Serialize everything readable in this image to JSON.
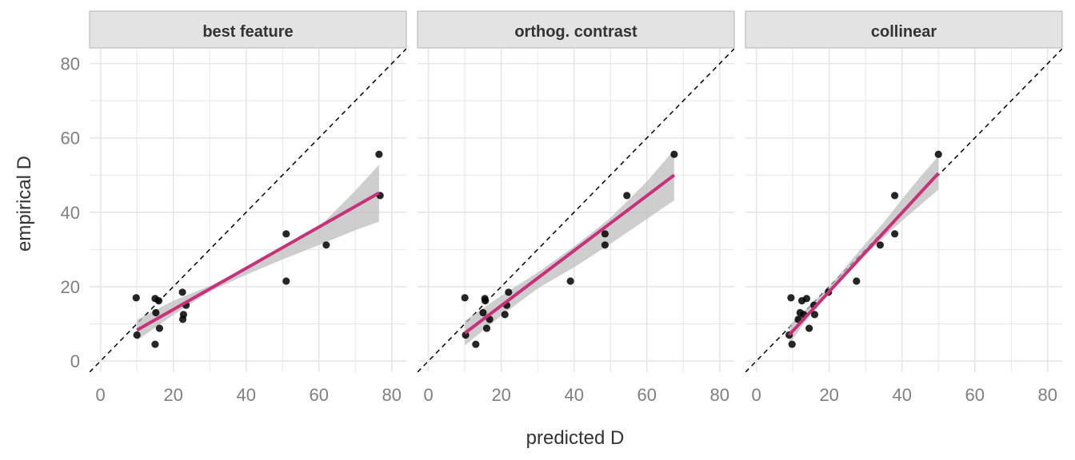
{
  "chart_data": {
    "type": "scatter",
    "xlabel": "predicted D",
    "ylabel": "empirical D",
    "xlim": [
      -3,
      84
    ],
    "ylim": [
      -3,
      84
    ],
    "x_ticks": [
      0,
      20,
      40,
      60,
      80
    ],
    "y_ticks": [
      0,
      20,
      40,
      60,
      80
    ],
    "grid": true,
    "reference_line": {
      "slope": 1,
      "intercept": 0,
      "style": "dashed"
    },
    "colors": {
      "fit_line": "#c8317a",
      "confidence_band": "#bdbdbd",
      "points": "#000000",
      "strip_bg": "#e3e3e3",
      "grid": "#e6e6e6"
    },
    "panels": [
      {
        "title": "best feature",
        "points": [
          [
            9.8,
            17
          ],
          [
            10,
            7
          ],
          [
            15,
            16.8
          ],
          [
            15.2,
            13
          ],
          [
            16,
            16.2
          ],
          [
            16.2,
            8.8
          ],
          [
            22.5,
            18.5
          ],
          [
            22.6,
            11.2
          ],
          [
            22.8,
            12.5
          ],
          [
            23.5,
            15
          ],
          [
            15,
            4.5
          ],
          [
            51,
            34.2
          ],
          [
            51,
            21.5
          ],
          [
            62,
            31.2
          ],
          [
            76.5,
            55.6
          ],
          [
            76.8,
            44.5
          ]
        ],
        "fit": {
          "x": [
            10,
            76.5
          ],
          "y": [
            8.3,
            45.2
          ]
        },
        "ci": {
          "x": [
            10,
            20,
            30,
            40,
            50,
            60,
            70,
            76.5
          ],
          "lower": [
            5.5,
            12.4,
            18.7,
            23.2,
            27.3,
            31.2,
            35.2,
            37.5
          ],
          "upper": [
            11.1,
            16.2,
            20.2,
            25.0,
            30.1,
            36.0,
            45.8,
            52.8
          ]
        }
      },
      {
        "title": "orthog. contrast",
        "points": [
          [
            10,
            17
          ],
          [
            10.2,
            7
          ],
          [
            13,
            4.5
          ],
          [
            15,
            13
          ],
          [
            15.5,
            16.8
          ],
          [
            15.6,
            16.2
          ],
          [
            16,
            8.8
          ],
          [
            16.8,
            11.2
          ],
          [
            21,
            12.5
          ],
          [
            21.5,
            15
          ],
          [
            22,
            18.5
          ],
          [
            39,
            21.5
          ],
          [
            48.5,
            34.2
          ],
          [
            48.5,
            31.2
          ],
          [
            54.5,
            44.5
          ],
          [
            67.5,
            55.6
          ]
        ],
        "fit": {
          "x": [
            10,
            67.5
          ],
          "y": [
            7.5,
            50
          ]
        },
        "ci": {
          "x": [
            10,
            20,
            30,
            40,
            50,
            60,
            67.5
          ],
          "lower": [
            4.2,
            12.2,
            19.5,
            25.2,
            31.5,
            38.2,
            43.2
          ],
          "upper": [
            10.8,
            17.6,
            23.8,
            30.8,
            38.5,
            48.3,
            56.8
          ]
        }
      },
      {
        "title": "collinear",
        "points": [
          [
            9,
            7
          ],
          [
            9.5,
            17
          ],
          [
            9.8,
            4.5
          ],
          [
            11.5,
            11.2
          ],
          [
            12,
            13
          ],
          [
            12.5,
            16.2
          ],
          [
            13,
            12.5
          ],
          [
            13.8,
            16.8
          ],
          [
            14.5,
            8.8
          ],
          [
            15.8,
            15
          ],
          [
            16,
            12.5
          ],
          [
            19.8,
            18.5
          ],
          [
            27.5,
            21.5
          ],
          [
            34,
            31.2
          ],
          [
            38,
            44.5
          ],
          [
            38,
            34.2
          ],
          [
            50,
            55.6
          ]
        ],
        "fit": {
          "x": [
            9,
            50
          ],
          "y": [
            7,
            50.5
          ]
        },
        "ci": {
          "x": [
            9,
            15,
            20,
            25,
            30,
            35,
            40,
            45,
            50
          ],
          "lower": [
            4.5,
            12.8,
            18.6,
            23.8,
            28.6,
            33.3,
            37.7,
            41.9,
            46.1
          ],
          "upper": [
            9.5,
            15.2,
            20.0,
            25.8,
            31.6,
            37.3,
            43.5,
            49.5,
            55.1
          ]
        }
      }
    ]
  }
}
